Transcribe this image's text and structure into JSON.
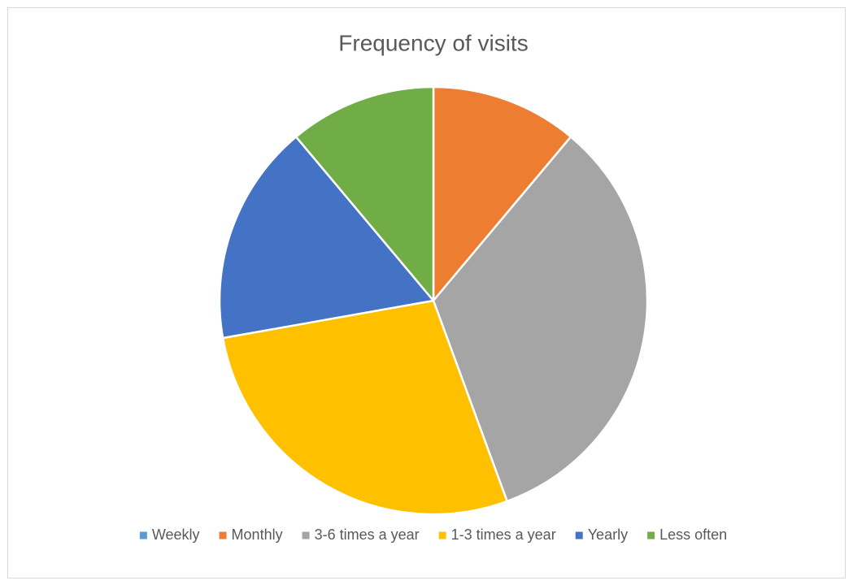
{
  "chart_data": {
    "type": "pie",
    "title": "Frequency of visits",
    "categories": [
      "Weekly",
      "Monthly",
      "3-6 times a year",
      "1-3 times a year",
      "Yearly",
      "Less often"
    ],
    "values": [
      0,
      11.1,
      33.3,
      27.8,
      16.7,
      11.1
    ],
    "colors": [
      "#5b9bd5",
      "#ed7d31",
      "#a5a5a5",
      "#ffc000",
      "#4472c4",
      "#70ad47"
    ],
    "legend": "bottom"
  }
}
